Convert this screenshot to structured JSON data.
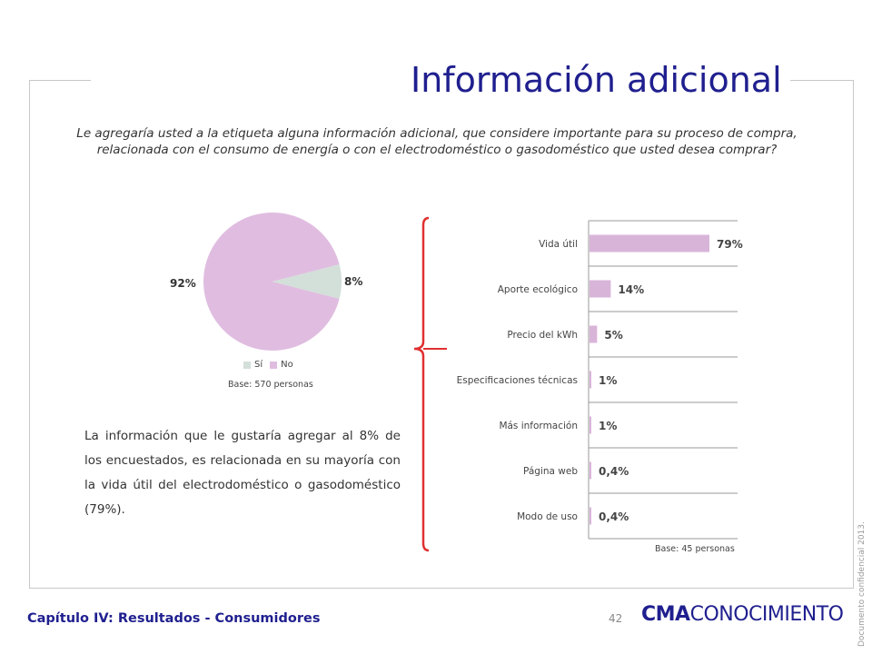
{
  "slide": {
    "title": "Información adicional",
    "question": "Le agregaría usted a la etiqueta alguna información adicional, que  considere importante para su proceso de compra, relacionada con el consumo de energía o con el electrodoméstico o gasodoméstico que usted desea comprar?",
    "paragraph": "La información que le gustaría agregar al 8% de los encuestados, es relacionada en su mayoría con la vida útil del electrodoméstico o gasodoméstico (79%).",
    "chapter": "Capítulo IV: Resultados - Consumidores",
    "page_number": "42",
    "brand_bold": "CMA",
    "brand_rest": "CONOCIMIENTO",
    "confidential": "Documento confidencial 2013."
  },
  "colors": {
    "si": "#d3dfd9",
    "no": "#e0bde0",
    "bar": "#d9b4d9",
    "bracket": "#e03030",
    "title": "#1f1f8f"
  },
  "chart_data": [
    {
      "type": "pie",
      "labels": [
        "Sí",
        "No"
      ],
      "values": [
        8,
        92
      ],
      "display": [
        "8%",
        "92%"
      ],
      "legend": "bottom",
      "base": "Base: 570 personas"
    },
    {
      "type": "bar",
      "orientation": "horizontal",
      "categories": [
        "Vida útil",
        "Aporte ecológico",
        "Precio del kWh",
        "Especificaciones técnicas",
        "Más información",
        "Página web",
        "Modo de uso"
      ],
      "values": [
        79,
        14,
        5,
        1,
        1,
        0.4,
        0.4
      ],
      "display": [
        "79%",
        "14%",
        "5%",
        "1%",
        "1%",
        "0,4%",
        "0,4%"
      ],
      "grid": true,
      "base": "Base: 45 personas"
    }
  ]
}
